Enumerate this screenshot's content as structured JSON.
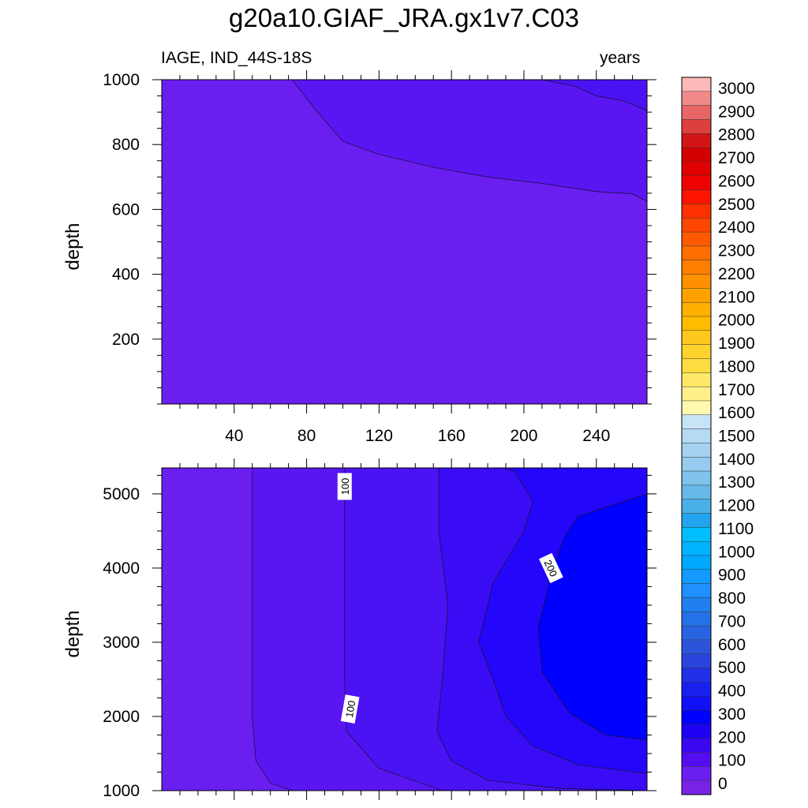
{
  "title": "g20a10.GIAF_JRA.gx1v7.C03",
  "subtitle_left": "IAGE, IND_44S-18S",
  "subtitle_right": "years",
  "chart_data": [
    {
      "type": "contour",
      "panel": "upper",
      "xlabel": "",
      "ylabel": "depth",
      "xlim": [
        0,
        268
      ],
      "ylim": [
        1000,
        0
      ],
      "xticks": [
        40,
        80,
        120,
        160,
        200,
        240
      ],
      "yticks": [
        200,
        400,
        600,
        800,
        1000
      ],
      "x_tick_labels": [
        "40",
        "80",
        "120",
        "160",
        "200",
        "240"
      ],
      "y_tick_labels": [
        "200",
        "400",
        "600",
        "800",
        "1000"
      ],
      "contour_interval": 50,
      "fill_bands": [
        {
          "range": "0-50",
          "color": "#6B1EF0"
        },
        {
          "range": "50-100",
          "color": "#5A16F2"
        },
        {
          "range": "100-150",
          "color": "#4B12F4"
        }
      ],
      "contours": [
        {
          "level": 50,
          "points": [
            [
              72,
              1000
            ],
            [
              86,
              900
            ],
            [
              100,
              810
            ],
            [
              120,
              770
            ],
            [
              150,
              730
            ],
            [
              180,
              700
            ],
            [
              210,
              680
            ],
            [
              240,
              655
            ],
            [
              260,
              648
            ],
            [
              268,
              625
            ]
          ]
        },
        {
          "level": 100,
          "points": [
            [
              210,
              1000
            ],
            [
              228,
              980
            ],
            [
              240,
              950
            ],
            [
              255,
              935
            ],
            [
              268,
              905
            ]
          ]
        }
      ]
    },
    {
      "type": "contour",
      "panel": "lower",
      "xlabel": "",
      "ylabel": "depth",
      "xlim": [
        0,
        268
      ],
      "ylim": [
        5350,
        1000
      ],
      "yticks": [
        1000,
        2000,
        3000,
        4000,
        5000
      ],
      "y_tick_labels": [
        "1000",
        "2000",
        "3000",
        "4000",
        "5000"
      ],
      "contour_interval": 50,
      "fill_bands": [
        {
          "range": "0-50",
          "color": "#6B1EF0"
        },
        {
          "range": "50-100",
          "color": "#5A16F2"
        },
        {
          "range": "100-150",
          "color": "#4B12F4"
        },
        {
          "range": "150-200",
          "color": "#3A0CF6"
        },
        {
          "range": "200-250",
          "color": "#2406FA"
        },
        {
          "range": "250-300",
          "color": "#0000FF"
        }
      ],
      "contours": [
        {
          "level": 50,
          "points": [
            [
              72,
              1000
            ],
            [
              60,
              1100
            ],
            [
              52,
              1400
            ],
            [
              50,
              2000
            ],
            [
              50,
              3000
            ],
            [
              50,
              4000
            ],
            [
              50,
              5350
            ]
          ]
        },
        {
          "level": 100,
          "points": [
            [
              155,
              1000
            ],
            [
              120,
              1300
            ],
            [
              102,
              1800
            ],
            [
              101,
              2500
            ],
            [
              101,
              3500
            ],
            [
              101,
              4500
            ],
            [
              101,
              5350
            ]
          ]
        },
        {
          "level": 150,
          "points": [
            [
              268,
              1000
            ],
            [
              220,
              1030
            ],
            [
              180,
              1140
            ],
            [
              160,
              1400
            ],
            [
              152,
              1800
            ],
            [
              155,
              2500
            ],
            [
              158,
              3500
            ],
            [
              153,
              4500
            ],
            [
              153,
              5350
            ]
          ]
        },
        {
          "level": 200,
          "points": [
            [
              268,
              1230
            ],
            [
              230,
              1350
            ],
            [
              205,
              1600
            ],
            [
              190,
              2000
            ],
            [
              183,
              2500
            ],
            [
              175,
              3000
            ],
            [
              183,
              3800
            ],
            [
              200,
              4500
            ],
            [
              205,
              4900
            ],
            [
              195,
              5300
            ],
            [
              188,
              5350
            ]
          ]
        },
        {
          "level": 250,
          "points": [
            [
              268,
              1680
            ],
            [
              245,
              1750
            ],
            [
              225,
              2050
            ],
            [
              210,
              2600
            ],
            [
              208,
              3200
            ],
            [
              215,
              3900
            ],
            [
              222,
              4400
            ],
            [
              230,
              4700
            ],
            [
              268,
              5000
            ]
          ]
        }
      ],
      "contour_labels": [
        {
          "text": "100",
          "x": 104,
          "y": 2100,
          "rotation": -80
        },
        {
          "text": "100",
          "x": 101,
          "y": 5100,
          "rotation": -90
        },
        {
          "text": "200",
          "x": 215,
          "y": 4000,
          "rotation": 65
        }
      ]
    }
  ],
  "colorbar": {
    "labels": [
      "3000",
      "2900",
      "2800",
      "2700",
      "2600",
      "2500",
      "2400",
      "2300",
      "2200",
      "2100",
      "2000",
      "1900",
      "1800",
      "1700",
      "1600",
      "1500",
      "1400",
      "1300",
      "1200",
      "1100",
      "1000",
      "900",
      "800",
      "700",
      "600",
      "500",
      "400",
      "300",
      "200",
      "100",
      "0"
    ],
    "colors": [
      "#FBB9B9",
      "#F28A8A",
      "#E86666",
      "#DD3F3F",
      "#D21414",
      "#D40000",
      "#E00000",
      "#F00000",
      "#FE1400",
      "#FF3000",
      "#FF4600",
      "#FF5A00",
      "#FF6E00",
      "#FF7F00",
      "#FF9000",
      "#FFA200",
      "#FFB000",
      "#FFBC00",
      "#FFC81C",
      "#FFD22E",
      "#FFDC3F",
      "#FFE868",
      "#FEF08A",
      "#FFF9B0",
      "#C7E3F6",
      "#B5DAF2",
      "#A6D1EF",
      "#96CAEE",
      "#80C3EC",
      "#66BAEA",
      "#4AB0E8",
      "#22A4EF",
      "#00BFFF",
      "#00B4FF",
      "#00A8FF",
      "#129AFF",
      "#1E90FF",
      "#2080F0",
      "#2472E8",
      "#2864E2",
      "#2C54DA",
      "#2B44DE",
      "#2230E8",
      "#1820F0",
      "#0E10F6",
      "#0000FF",
      "#1E00F2",
      "#3A08F0",
      "#520EF0",
      "#6B1EF0",
      "#7A22E8"
    ]
  }
}
